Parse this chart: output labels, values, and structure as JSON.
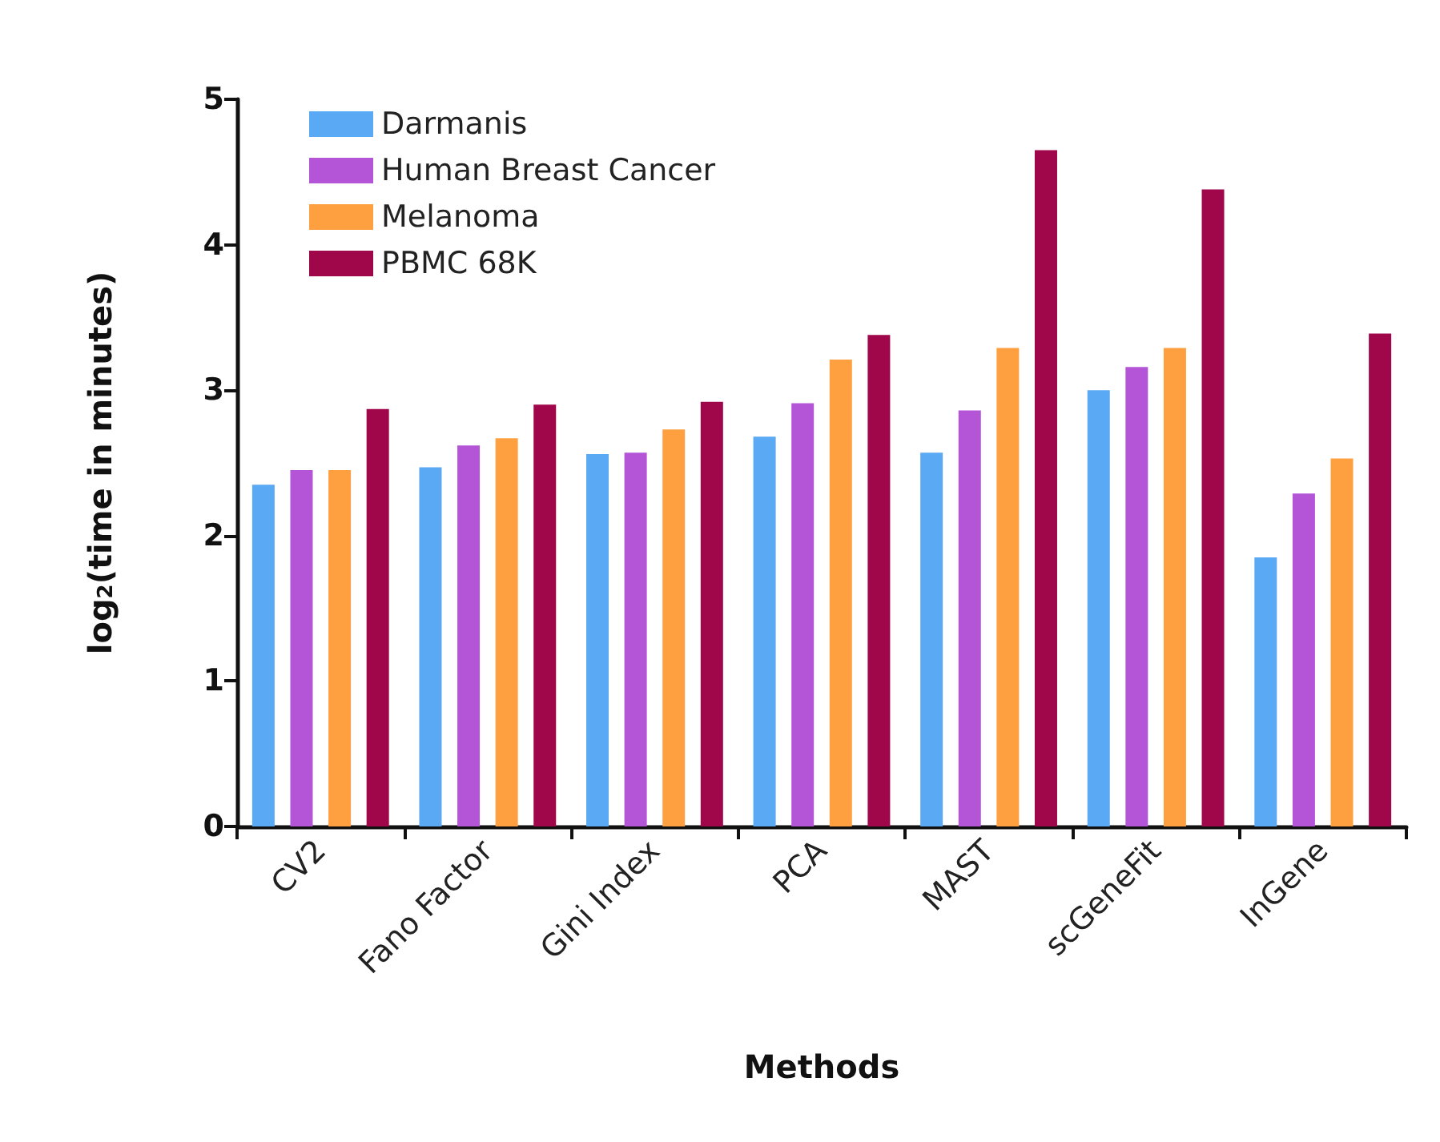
{
  "chart_data": {
    "type": "bar",
    "xlabel": "Methods",
    "ylabel": "log$_{2}$(time in minutes)",
    "categories": [
      "CV2",
      "Fano Factor",
      "Gini Index",
      "PCA",
      "MAST",
      "scGeneFit",
      "InGene"
    ],
    "series": [
      {
        "name": "Darmanis",
        "color": "#5aa9f5",
        "values": [
          2.35,
          2.47,
          2.56,
          2.68,
          2.57,
          3.0,
          1.85
        ]
      },
      {
        "name": "Human Breast Cancer",
        "color": "#b455d8",
        "values": [
          2.45,
          2.62,
          2.57,
          2.91,
          2.86,
          3.16,
          2.29
        ]
      },
      {
        "name": "Melanoma",
        "color": "#ffa040",
        "values": [
          2.45,
          2.67,
          2.73,
          3.21,
          3.29,
          3.29,
          2.53
        ]
      },
      {
        "name": "PBMC 68K",
        "color": "#a0064a",
        "values": [
          2.87,
          2.9,
          2.92,
          3.38,
          4.65,
          4.38,
          3.39
        ]
      }
    ],
    "ylim": [
      0,
      5
    ],
    "yticks": [
      0,
      1,
      2,
      3,
      4,
      5
    ],
    "grid": false,
    "legend": "top left"
  }
}
